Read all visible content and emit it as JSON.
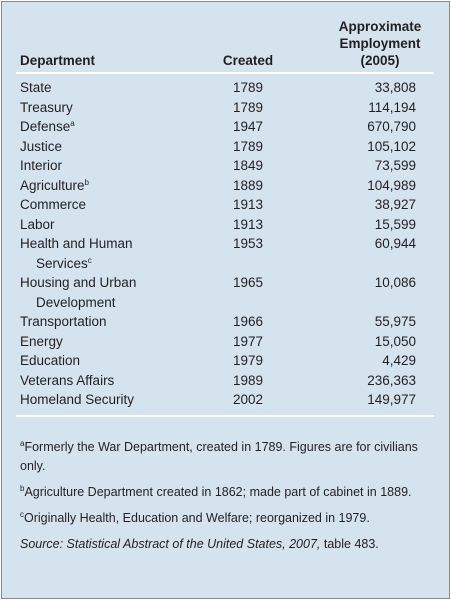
{
  "table": {
    "header": [
      "Department",
      "Created",
      "Approximate Employment (2005)"
    ],
    "rows": [
      [
        {
          "name": "State"
        },
        "1789",
        "33,808"
      ],
      [
        {
          "name": "Treasury"
        },
        "1789",
        "114,194"
      ],
      [
        {
          "name": "Defense",
          "note": "a"
        },
        "1947",
        "670,790"
      ],
      [
        {
          "name": "Justice"
        },
        "1789",
        "105,102"
      ],
      [
        {
          "name": "Interior"
        },
        "1849",
        "73,599"
      ],
      [
        {
          "name": "Agriculture",
          "note": "b"
        },
        "1889",
        "104,989"
      ],
      [
        {
          "name": "Commerce"
        },
        "1913",
        "38,927"
      ],
      [
        {
          "name": "Labor"
        },
        "1913",
        "15,599"
      ],
      [
        {
          "name": "Health and Human Services",
          "note": "c"
        },
        "1953",
        "60,944"
      ],
      [
        {
          "name": "Housing and Urban Development"
        },
        "1965",
        "10,086"
      ],
      [
        {
          "name": "Transportation"
        },
        "1966",
        "55,975"
      ],
      [
        {
          "name": "Energy"
        },
        "1977",
        "15,050"
      ],
      [
        {
          "name": "Education"
        },
        "1979",
        "4,429"
      ],
      [
        {
          "name": "Veterans Affairs"
        },
        "1989",
        "236,363"
      ],
      [
        {
          "name": "Homeland Security"
        },
        "2002",
        "149,977"
      ]
    ]
  },
  "footnotes": [
    {
      "marker": "a",
      "text": "Formerly the War Department, created in 1789. Figures are for civilians only."
    },
    {
      "marker": "b",
      "text": "Agriculture Department created in 1862; made part of cabinet in 1889."
    },
    {
      "marker": "c",
      "text": "Originally Health, Education and Welfare; reorganized in 1979."
    }
  ],
  "source": {
    "title": "Source: Statistical Abstract of the United States, 2007,",
    "rest": " table 483."
  }
}
